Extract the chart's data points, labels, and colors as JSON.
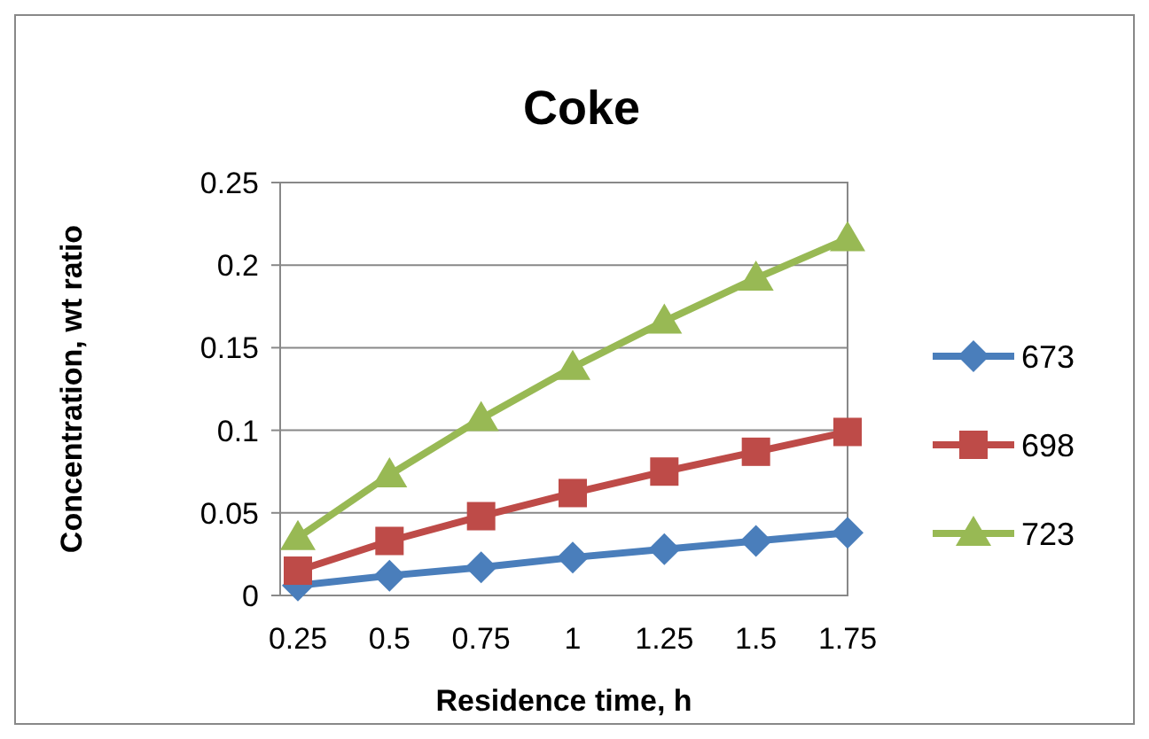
{
  "chart_data": {
    "type": "line",
    "title": "Coke",
    "xlabel": "Residence time, h",
    "ylabel": "Concentration, wt ratio",
    "categories": [
      "0.25",
      "0.5",
      "0.75",
      "1",
      "1.25",
      "1.5",
      "1.75"
    ],
    "series": [
      {
        "name": "673",
        "color": "#4a7ebb",
        "marker": "diamond",
        "values": [
          0.006,
          0.012,
          0.017,
          0.023,
          0.028,
          0.033,
          0.038
        ]
      },
      {
        "name": "698",
        "color": "#be4b48",
        "marker": "square",
        "values": [
          0.015,
          0.033,
          0.048,
          0.062,
          0.075,
          0.087,
          0.099
        ]
      },
      {
        "name": "723",
        "color": "#98b954",
        "marker": "triangle",
        "values": [
          0.035,
          0.073,
          0.107,
          0.138,
          0.166,
          0.192,
          0.216
        ]
      }
    ],
    "ylim": [
      0,
      0.25
    ],
    "yticks": [
      0,
      0.05,
      0.1,
      0.15,
      0.2,
      0.25
    ],
    "grid": "y",
    "legend": "right",
    "line_style": "solid"
  }
}
